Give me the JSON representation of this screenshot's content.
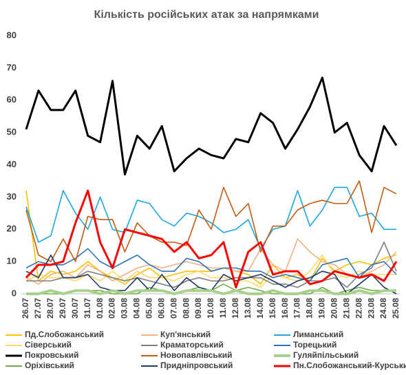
{
  "chart_data": {
    "type": "line",
    "title": "Кількість російських атак за напрямками",
    "categories": [
      "26.07",
      "27.07",
      "28.07",
      "29.07",
      "30.07",
      "31.07",
      "01.08",
      "02.08",
      "03.08",
      "04.08",
      "05.08",
      "06.08",
      "07.08",
      "08.08",
      "09.08",
      "10.08",
      "11.08",
      "12.08",
      "13.08",
      "14.08",
      "15.08",
      "16.08",
      "17.08",
      "18.08",
      "19.08",
      "20.08",
      "21.08",
      "22.08",
      "23.08",
      "24.08",
      "25.08"
    ],
    "ylim": [
      0,
      80
    ],
    "yticks": [
      0,
      10,
      20,
      30,
      40,
      50,
      60,
      70,
      80
    ],
    "grid": false,
    "legend": "bottom",
    "series": [
      {
        "name": "Пд.Слобожанський",
        "color": "#ffc000",
        "values": [
          32,
          4,
          7,
          6,
          7,
          10,
          7,
          5,
          3,
          6,
          8,
          5,
          6,
          7,
          7,
          7,
          8,
          7,
          6,
          3,
          9,
          5,
          6,
          4,
          11,
          7,
          9,
          10,
          9,
          11,
          12
        ]
      },
      {
        "name": "Куп'янський",
        "color": "#f4b183",
        "values": [
          5,
          3,
          6,
          7,
          5,
          9,
          7,
          4,
          6,
          8,
          9,
          8,
          9,
          10,
          9,
          8,
          8,
          7,
          7,
          14,
          9,
          7,
          17,
          13,
          10,
          9,
          6,
          5,
          7,
          9,
          13
        ]
      },
      {
        "name": "Лиманський",
        "color": "#1ca6df",
        "values": [
          27,
          16,
          18,
          32,
          25,
          20,
          30,
          20,
          19,
          29,
          28,
          23,
          21,
          25,
          24,
          22,
          19,
          20,
          23,
          14,
          20,
          21,
          32,
          21,
          26,
          33,
          33,
          24,
          25,
          20,
          20
        ]
      },
      {
        "name": "Сіверський",
        "color": "#ffd966",
        "values": [
          4,
          6,
          5,
          5,
          4,
          6,
          4,
          7,
          4,
          7,
          5,
          5,
          4,
          6,
          7,
          5,
          5,
          4,
          4,
          2,
          6,
          5,
          4,
          7,
          12,
          6,
          5,
          7,
          6,
          6,
          6
        ]
      },
      {
        "name": "Краматорський",
        "color": "#7f7f7f",
        "values": [
          4,
          4,
          4,
          5,
          5,
          7,
          6,
          5,
          4,
          5,
          4,
          3,
          2,
          4,
          5,
          4,
          4,
          5,
          5,
          5,
          3,
          3,
          2,
          4,
          4,
          5,
          2,
          6,
          8,
          16,
          7
        ]
      },
      {
        "name": "Торецький",
        "color": "#2e75b6",
        "values": [
          8,
          10,
          9,
          9,
          11,
          14,
          10,
          8,
          10,
          12,
          9,
          7,
          7,
          11,
          10,
          7,
          8,
          8,
          7,
          7,
          5,
          6,
          5,
          4,
          9,
          10,
          11,
          5,
          9,
          10,
          6
        ]
      },
      {
        "name": "Покровський",
        "color": "#000000",
        "values": [
          51,
          63,
          57,
          57,
          63,
          49,
          47,
          66,
          37,
          49,
          45,
          52,
          38,
          42,
          45,
          43,
          42,
          48,
          47,
          56,
          53,
          45,
          51,
          58,
          67,
          50,
          53,
          43,
          38,
          52,
          46
        ]
      },
      {
        "name": "Новопавлівський",
        "color": "#c55a11",
        "values": [
          26,
          12,
          10,
          17,
          10,
          24,
          23,
          23,
          13,
          22,
          18,
          16,
          16,
          15,
          26,
          20,
          33,
          24,
          28,
          13,
          21,
          21,
          26,
          28,
          29,
          28,
          28,
          35,
          19,
          33,
          31
        ]
      },
      {
        "name": "Гуляйпільський",
        "color": "#a9d18e",
        "values": [
          0,
          0,
          1,
          0,
          1,
          1,
          0,
          1,
          0,
          1,
          1,
          1,
          0,
          1,
          1,
          1,
          0,
          1,
          0,
          0,
          1,
          0,
          0,
          1,
          1,
          0,
          0,
          1,
          0,
          1,
          1
        ]
      },
      {
        "name": "Оріхівський",
        "color": "#70ad47",
        "values": [
          0,
          0,
          0,
          0,
          1,
          1,
          1,
          0,
          0,
          0,
          2,
          1,
          0,
          1,
          2,
          1,
          3,
          1,
          2,
          1,
          0,
          0,
          0,
          0,
          2,
          0,
          1,
          2,
          1,
          1,
          1
        ]
      },
      {
        "name": "Придніпровський",
        "color": "#203864",
        "values": [
          7,
          5,
          12,
          5,
          5,
          6,
          2,
          1,
          1,
          5,
          1,
          6,
          1,
          5,
          2,
          1,
          6,
          4,
          5,
          6,
          4,
          2,
          4,
          5,
          7,
          6,
          0,
          3,
          6,
          2,
          0
        ]
      },
      {
        "name": "Пн.Слобожанський-Курський",
        "color": "#ff0000",
        "values": [
          5,
          9,
          9,
          10,
          22,
          32,
          16,
          8,
          20,
          19,
          18,
          17,
          13,
          16,
          11,
          12,
          16,
          2,
          13,
          16,
          6,
          7,
          7,
          3,
          4,
          7,
          6,
          5,
          6,
          4,
          10
        ]
      }
    ]
  }
}
